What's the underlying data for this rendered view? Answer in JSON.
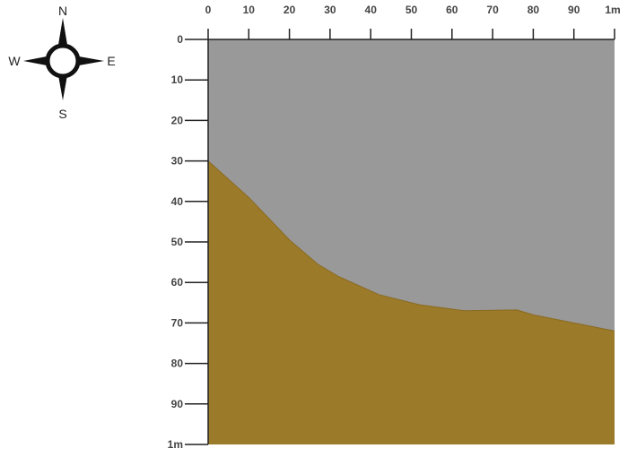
{
  "compass": {
    "north": "N",
    "south": "S",
    "east": "E",
    "west": "W"
  },
  "colors": {
    "sky": "#999999",
    "ground": "#9b7a2a",
    "axis": "#222222",
    "tick_text": "#444444"
  },
  "chart_data": {
    "type": "area",
    "x_ticks": [
      "0",
      "10",
      "20",
      "30",
      "40",
      "50",
      "60",
      "70",
      "80",
      "90",
      "1m"
    ],
    "y_ticks": [
      "0",
      "10",
      "20",
      "30",
      "40",
      "50",
      "60",
      "70",
      "80",
      "90",
      "1m"
    ],
    "xlim": [
      0,
      100
    ],
    "ylim": [
      0,
      100
    ],
    "y_inverted": true,
    "boundary": {
      "x": [
        0,
        10,
        20,
        27,
        32,
        42,
        52,
        63,
        76,
        80,
        90,
        100
      ],
      "y": [
        30,
        39,
        49.5,
        55.5,
        58.5,
        63,
        65.5,
        67,
        66.8,
        68,
        70,
        72
      ]
    },
    "upper_region_color": "#999999",
    "lower_region_color": "#9b7a2a"
  }
}
